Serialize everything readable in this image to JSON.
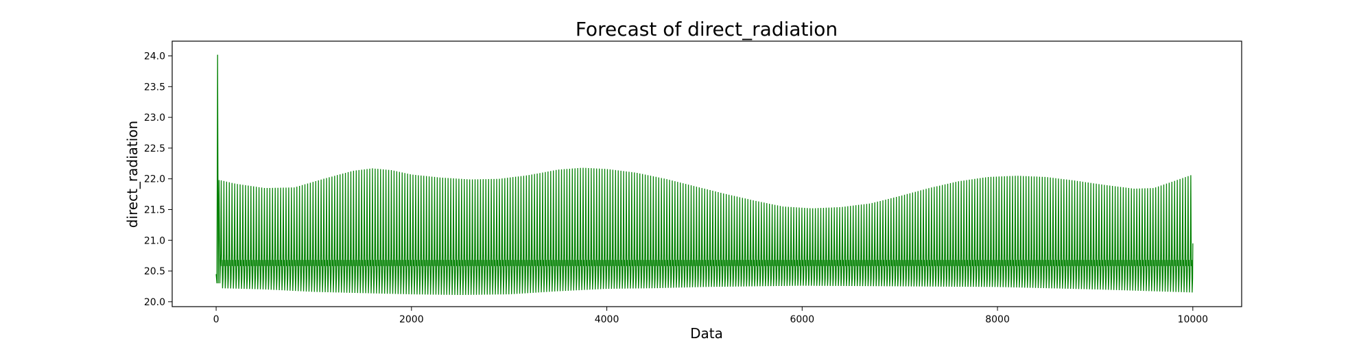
{
  "chart_data": {
    "type": "line",
    "title": "Forecast of direct_radiation",
    "xlabel": "Data",
    "ylabel": "direct_radiation",
    "xlim": [
      -450,
      10500
    ],
    "ylim": [
      19.92,
      24.24
    ],
    "x_ticks": [
      0,
      2000,
      4000,
      6000,
      8000,
      10000
    ],
    "x_tick_labels": [
      "0",
      "2000",
      "4000",
      "6000",
      "8000",
      "10000"
    ],
    "y_ticks": [
      20.0,
      20.5,
      21.0,
      21.5,
      22.0,
      22.5,
      23.0,
      23.5,
      24.0
    ],
    "y_tick_labels": [
      "20.0",
      "20.5",
      "21.0",
      "21.5",
      "22.0",
      "22.5",
      "23.0",
      "23.5",
      "24.0"
    ],
    "grid": false,
    "series_color": "#008000",
    "series": [
      {
        "points_start": [
          [
            0,
            20.45
          ],
          [
            8,
            20.3
          ],
          [
            15,
            24.02
          ],
          [
            22,
            20.3
          ],
          [
            30,
            21.98
          ],
          [
            38,
            20.3
          ]
        ],
        "upper_envelope": [
          [
            40,
            21.98
          ],
          [
            200,
            21.92
          ],
          [
            500,
            21.85
          ],
          [
            800,
            21.86
          ],
          [
            1100,
            22.0
          ],
          [
            1400,
            22.13
          ],
          [
            1600,
            22.17
          ],
          [
            1800,
            22.14
          ],
          [
            2000,
            22.07
          ],
          [
            2300,
            22.02
          ],
          [
            2600,
            21.99
          ],
          [
            2900,
            22.0
          ],
          [
            3200,
            22.06
          ],
          [
            3500,
            22.15
          ],
          [
            3750,
            22.18
          ],
          [
            4000,
            22.16
          ],
          [
            4300,
            22.1
          ],
          [
            4600,
            22.0
          ],
          [
            4900,
            21.88
          ],
          [
            5200,
            21.76
          ],
          [
            5500,
            21.65
          ],
          [
            5800,
            21.55
          ],
          [
            6100,
            21.52
          ],
          [
            6400,
            21.54
          ],
          [
            6700,
            21.6
          ],
          [
            7000,
            21.72
          ],
          [
            7300,
            21.85
          ],
          [
            7600,
            21.96
          ],
          [
            7900,
            22.03
          ],
          [
            8200,
            22.05
          ],
          [
            8500,
            22.03
          ],
          [
            8800,
            21.97
          ],
          [
            9100,
            21.9
          ],
          [
            9400,
            21.84
          ],
          [
            9600,
            21.85
          ],
          [
            9800,
            21.96
          ],
          [
            10000,
            22.07
          ]
        ],
        "lower_envelope": [
          [
            40,
            20.22
          ],
          [
            500,
            20.2
          ],
          [
            1000,
            20.16
          ],
          [
            1500,
            20.14
          ],
          [
            2000,
            20.12
          ],
          [
            2500,
            20.11
          ],
          [
            3000,
            20.12
          ],
          [
            3500,
            20.17
          ],
          [
            4000,
            20.21
          ],
          [
            4500,
            20.22
          ],
          [
            5000,
            20.24
          ],
          [
            6000,
            20.26
          ],
          [
            7000,
            20.25
          ],
          [
            8000,
            20.24
          ],
          [
            9000,
            20.2
          ],
          [
            10000,
            20.15
          ]
        ],
        "mid_band": [
          20.38,
          20.78
        ],
        "end_value": 20.95,
        "cycles": 360
      }
    ]
  }
}
